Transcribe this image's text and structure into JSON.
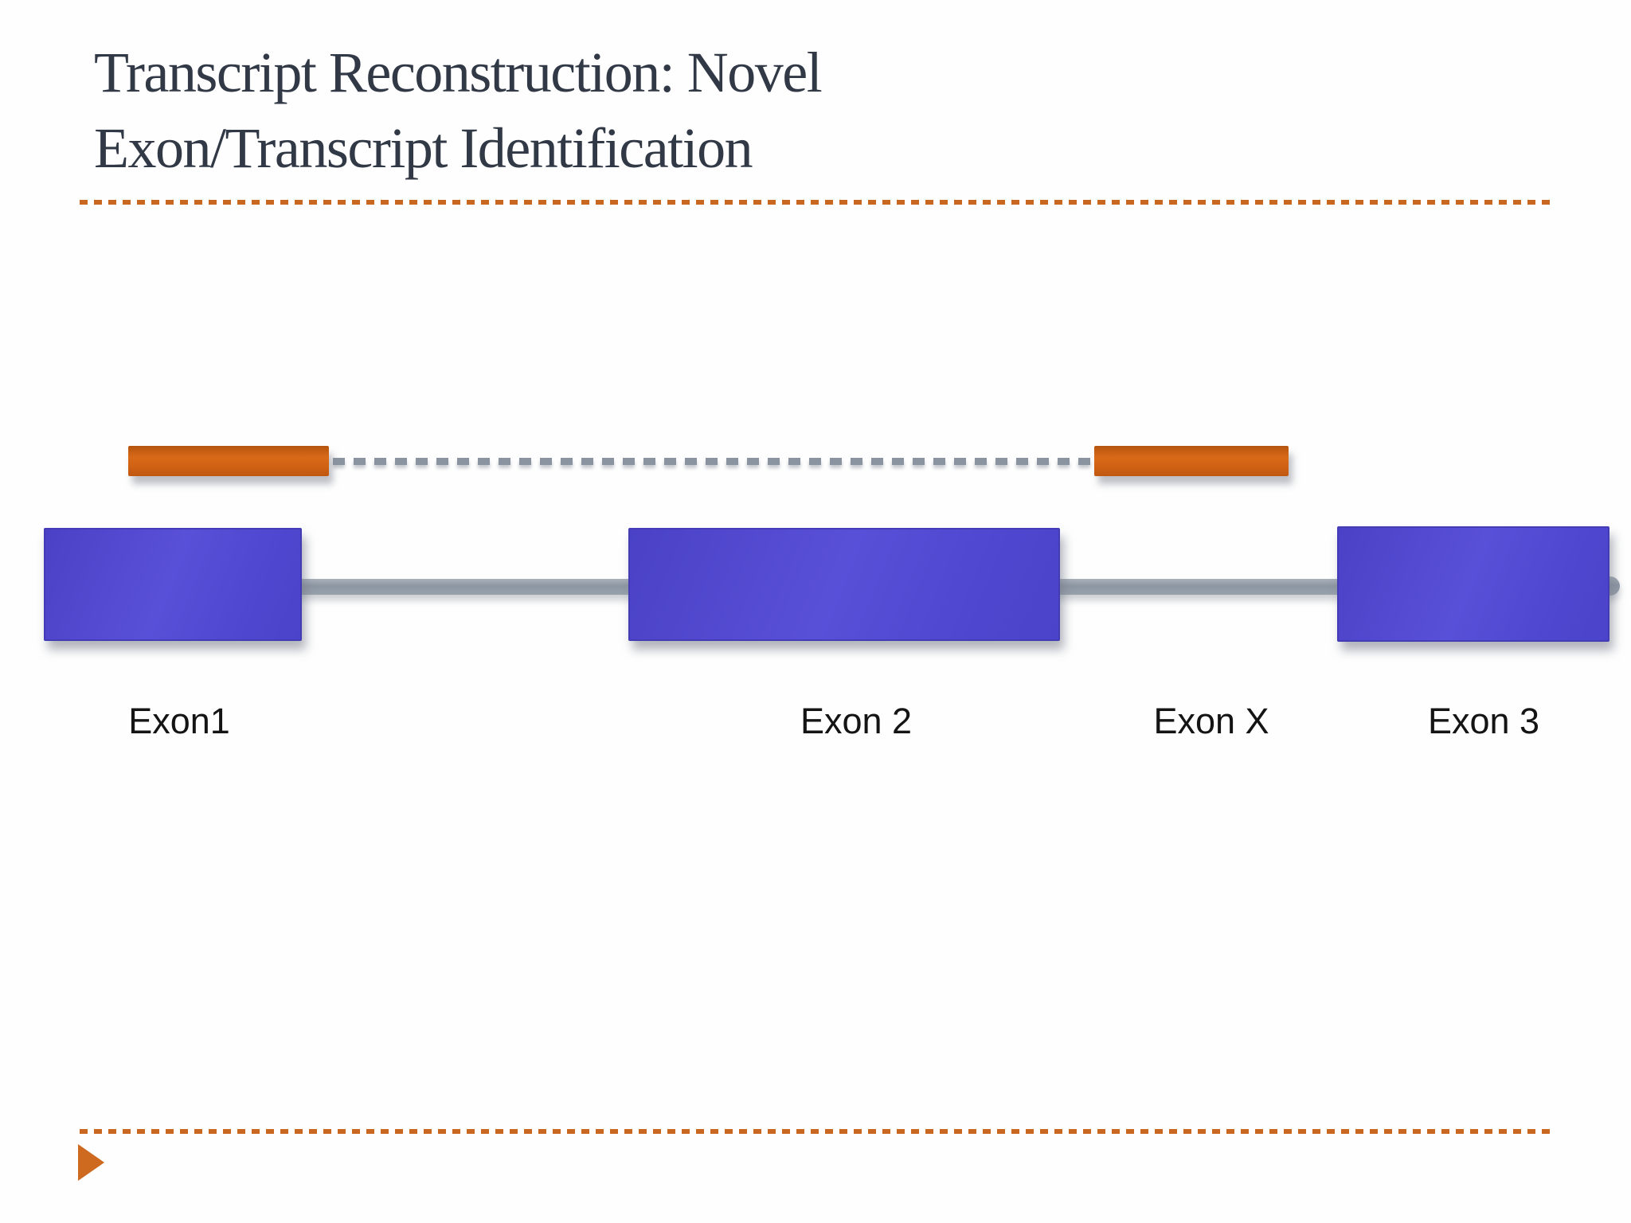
{
  "title": {
    "line1": "Transcript Reconstruction: Novel",
    "line2": "Exon/Transcript Identification"
  },
  "diagram": {
    "labels": [
      "Exon1",
      "Exon 2",
      "Exon X",
      "Exon 3"
    ],
    "novel_transcript": {
      "left_segment": "novel-exon-read-left",
      "junction": "dashed-splice-junction",
      "right_segment": "novel-exon-read-right"
    },
    "gene_model": {
      "exon_boxes": 3,
      "intron_lines": 2
    }
  },
  "footer": {
    "arrow_icon": "right-pointing-triangle"
  },
  "colors": {
    "accent-orange": "#CE6A1F",
    "separator-orange": "#C9661F",
    "exon-blue": "#514BD1",
    "exon-blue-dark": "#433CB4",
    "intron-gray": "#8C96A2",
    "junction-gray": "#8A94A1",
    "title-color": "#323946",
    "label-color": "#141414"
  }
}
